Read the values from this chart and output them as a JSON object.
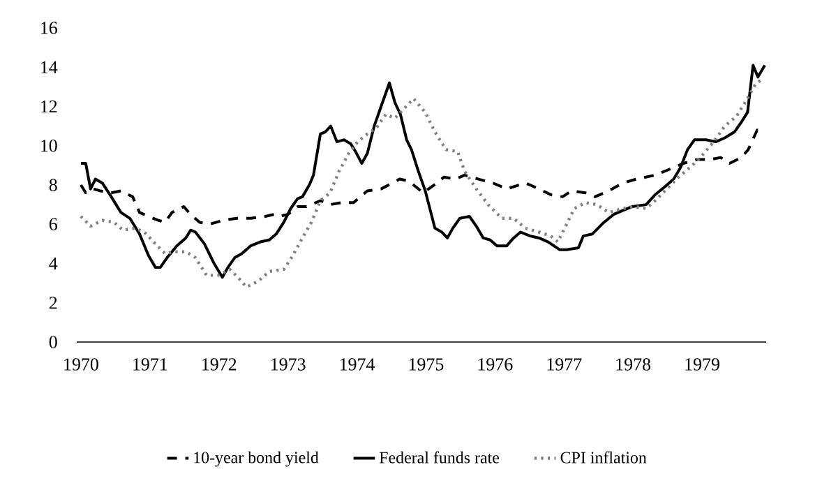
{
  "chart_data": {
    "type": "line",
    "xlim": [
      1969.94,
      1979.93
    ],
    "ylim": [
      0,
      16
    ],
    "xticks": [
      1970,
      1971,
      1972,
      1973,
      1974,
      1975,
      1976,
      1977,
      1978,
      1979
    ],
    "yticks": [
      0,
      2,
      4,
      6,
      8,
      10,
      12,
      14,
      16
    ],
    "grid": false,
    "legend": "bottom",
    "marker": "none",
    "series": [
      {
        "name": "10-year bond yield",
        "color": "#000000",
        "line_style": "dashed",
        "x": [
          1970.0,
          1970.07,
          1970.18,
          1970.28,
          1970.44,
          1970.58,
          1970.75,
          1970.85,
          1970.98,
          1971.12,
          1971.22,
          1971.32,
          1971.49,
          1971.59,
          1971.72,
          1971.86,
          1972.06,
          1972.26,
          1972.46,
          1972.67,
          1972.8,
          1972.87,
          1973.0,
          1973.14,
          1973.27,
          1973.47,
          1973.61,
          1973.78,
          1973.95,
          1974.15,
          1974.35,
          1974.62,
          1974.75,
          1974.96,
          1975.16,
          1975.26,
          1975.43,
          1975.56,
          1975.76,
          1975.97,
          1976.17,
          1976.44,
          1976.64,
          1976.81,
          1976.98,
          1977.11,
          1977.31,
          1977.45,
          1977.65,
          1977.85,
          1978.05,
          1978.32,
          1978.53,
          1978.73,
          1978.93,
          1979.13,
          1979.27,
          1979.4,
          1979.57,
          1979.67,
          1979.8,
          1979.87
        ],
        "values": [
          8.0,
          7.6,
          7.8,
          7.7,
          7.6,
          7.7,
          7.4,
          6.6,
          6.4,
          6.2,
          6.1,
          6.6,
          6.9,
          6.5,
          6.1,
          6.0,
          6.2,
          6.3,
          6.3,
          6.4,
          6.5,
          6.4,
          6.5,
          6.9,
          6.9,
          7.2,
          7.0,
          7.1,
          7.1,
          7.7,
          7.8,
          8.3,
          8.2,
          7.6,
          8.1,
          8.4,
          8.3,
          8.5,
          8.3,
          8.1,
          7.8,
          8.1,
          7.8,
          7.5,
          7.4,
          7.7,
          7.6,
          7.4,
          7.7,
          8.1,
          8.3,
          8.5,
          8.8,
          9.1,
          9.3,
          9.3,
          9.4,
          9.1,
          9.4,
          9.8,
          10.8,
          10.7
        ]
      },
      {
        "name": "Federal funds rate",
        "color": "#000000",
        "line_style": "solid",
        "x": [
          1970.0,
          1970.07,
          1970.14,
          1970.21,
          1970.31,
          1970.44,
          1970.58,
          1970.71,
          1970.85,
          1970.98,
          1971.08,
          1971.15,
          1971.25,
          1971.39,
          1971.52,
          1971.59,
          1971.66,
          1971.79,
          1971.93,
          1972.05,
          1972.13,
          1972.23,
          1972.33,
          1972.46,
          1972.6,
          1972.73,
          1972.83,
          1972.94,
          1973.04,
          1973.14,
          1973.21,
          1973.31,
          1973.37,
          1973.47,
          1973.54,
          1973.62,
          1973.71,
          1973.81,
          1973.91,
          1973.98,
          1974.07,
          1974.15,
          1974.25,
          1974.35,
          1974.47,
          1974.55,
          1974.63,
          1974.72,
          1974.79,
          1974.89,
          1974.99,
          1975.13,
          1975.23,
          1975.31,
          1975.39,
          1975.49,
          1975.63,
          1975.73,
          1975.83,
          1975.93,
          1976.03,
          1976.17,
          1976.27,
          1976.37,
          1976.51,
          1976.64,
          1976.77,
          1976.94,
          1977.04,
          1977.21,
          1977.28,
          1977.41,
          1977.58,
          1977.72,
          1977.85,
          1977.99,
          1978.19,
          1978.32,
          1978.46,
          1978.59,
          1978.69,
          1978.79,
          1978.89,
          1979.06,
          1979.2,
          1979.33,
          1979.47,
          1979.57,
          1979.66,
          1979.74,
          1979.81,
          1979.91
        ],
        "values": [
          9.1,
          9.1,
          7.8,
          8.3,
          8.1,
          7.4,
          6.6,
          6.3,
          5.5,
          4.4,
          3.8,
          3.8,
          4.3,
          4.9,
          5.3,
          5.7,
          5.6,
          5.0,
          4.0,
          3.3,
          3.8,
          4.3,
          4.5,
          4.9,
          5.1,
          5.2,
          5.5,
          6.1,
          6.8,
          7.3,
          7.4,
          8.0,
          8.5,
          10.6,
          10.7,
          11.0,
          10.2,
          10.3,
          10.1,
          9.7,
          9.1,
          9.6,
          11.0,
          12.0,
          13.2,
          12.2,
          11.6,
          10.3,
          9.8,
          8.7,
          7.7,
          5.8,
          5.6,
          5.3,
          5.8,
          6.3,
          6.4,
          5.9,
          5.3,
          5.2,
          4.9,
          4.9,
          5.3,
          5.6,
          5.4,
          5.3,
          5.1,
          4.7,
          4.7,
          4.8,
          5.4,
          5.5,
          6.1,
          6.5,
          6.7,
          6.9,
          7.0,
          7.5,
          7.9,
          8.3,
          8.9,
          9.8,
          10.3,
          10.3,
          10.2,
          10.4,
          10.7,
          11.2,
          11.7,
          14.1,
          13.5,
          14.1
        ]
      },
      {
        "name": "CPI inflation",
        "color": "#808080",
        "line_style": "dotted",
        "x": [
          1970.0,
          1970.14,
          1970.31,
          1970.48,
          1970.61,
          1970.78,
          1970.92,
          1971.08,
          1971.22,
          1971.35,
          1971.52,
          1971.66,
          1971.82,
          1971.99,
          1972.16,
          1972.3,
          1972.4,
          1972.57,
          1972.73,
          1972.94,
          1973.07,
          1973.21,
          1973.34,
          1973.47,
          1973.61,
          1973.74,
          1973.88,
          1974.01,
          1974.15,
          1974.28,
          1974.42,
          1974.55,
          1974.82,
          1974.99,
          1975.13,
          1975.29,
          1975.46,
          1975.56,
          1975.73,
          1975.9,
          1976.1,
          1976.27,
          1976.44,
          1976.64,
          1976.81,
          1976.91,
          1977.01,
          1977.15,
          1977.31,
          1977.48,
          1977.65,
          1977.85,
          1978.02,
          1978.19,
          1978.32,
          1978.49,
          1978.66,
          1978.86,
          1979.0,
          1979.17,
          1979.33,
          1979.5,
          1979.64,
          1979.77,
          1979.87
        ],
        "values": [
          6.4,
          5.9,
          6.2,
          6.1,
          5.7,
          5.8,
          5.6,
          5.0,
          4.5,
          4.6,
          4.6,
          4.3,
          3.4,
          3.4,
          3.7,
          3.2,
          2.8,
          3.1,
          3.6,
          3.7,
          4.4,
          5.3,
          6.1,
          7.2,
          7.6,
          8.7,
          9.6,
          10.2,
          10.6,
          10.9,
          11.6,
          11.4,
          12.4,
          11.7,
          10.7,
          9.8,
          9.7,
          8.7,
          7.8,
          7.0,
          6.3,
          6.3,
          5.8,
          5.6,
          5.4,
          5.1,
          5.8,
          6.8,
          7.1,
          7.0,
          6.6,
          6.8,
          6.9,
          6.8,
          7.2,
          7.8,
          8.4,
          9.0,
          9.5,
          10.2,
          11.0,
          11.5,
          12.3,
          13.1,
          13.4
        ]
      }
    ]
  }
}
